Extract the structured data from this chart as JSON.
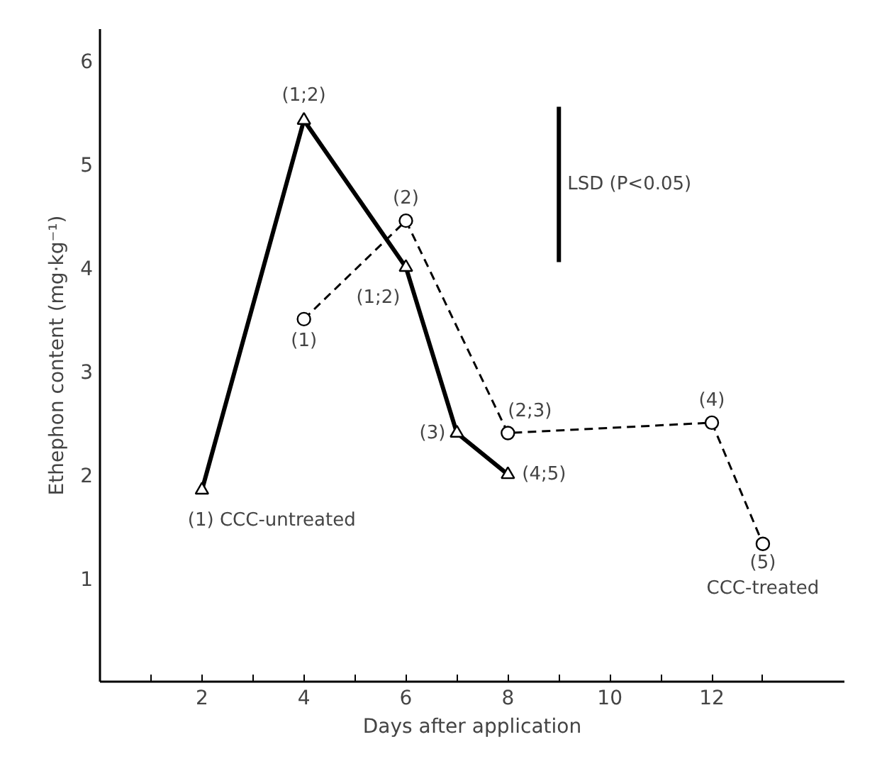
{
  "chart_data": {
    "type": "line",
    "xlabel": "Days after application",
    "ylabel": "Ethephon content (mg·kg⁻¹)",
    "xlim": [
      0,
      14.6
    ],
    "ylim": [
      0,
      6.3
    ],
    "xticks": [
      {
        "value": 1,
        "label": null
      },
      2,
      {
        "value": 3,
        "label": null
      },
      4,
      {
        "value": 5,
        "label": null
      },
      6,
      {
        "value": 7,
        "label": null
      },
      8,
      {
        "value": 9,
        "label": null
      },
      10,
      {
        "value": 11,
        "label": null
      },
      12,
      {
        "value": 13,
        "label": null
      }
    ],
    "yticks": [
      1,
      2,
      3,
      4,
      5,
      6
    ],
    "grid": false,
    "series": [
      {
        "color": "#000000",
        "x": [
          2,
          4,
          6,
          7,
          8
        ],
        "values": [
          1.85,
          5.42,
          4.0,
          2.4,
          2.0
        ],
        "marker": "triangle",
        "line_style": "solid"
      },
      {
        "color": "#000000",
        "x": [
          4,
          6,
          8,
          12,
          13
        ],
        "values": [
          3.5,
          4.45,
          2.4,
          2.5,
          1.33
        ],
        "marker": "circle",
        "line_style": "dashed"
      },
      {
        "color": "#000000",
        "x": [
          9,
          9
        ],
        "values": [
          5.55,
          4.05
        ],
        "marker": "none",
        "line_style": "solid"
      }
    ],
    "annotations": [
      {
        "text": "(1) CCC-untreated",
        "x": 2,
        "y": 1.85
      },
      {
        "text": "(1;2)",
        "x": 4,
        "y": 5.42
      },
      {
        "text": "(1;2)",
        "x": 6,
        "y": 4.0
      },
      {
        "text": "(3)",
        "x": 7,
        "y": 2.4
      },
      {
        "text": "(4;5)",
        "x": 8,
        "y": 2.0
      },
      {
        "text": "(1)",
        "x": 4,
        "y": 3.5
      },
      {
        "text": "(2)",
        "x": 6,
        "y": 4.45
      },
      {
        "text": "(2;3)",
        "x": 8,
        "y": 2.4
      },
      {
        "text": "(4)",
        "x": 12,
        "y": 2.5
      },
      {
        "text": "(5)",
        "x": 13,
        "y": 1.33
      },
      {
        "text": "CCC-treated",
        "x": 13,
        "y": 1.33
      },
      {
        "text": "LSD (P<0.05)",
        "x": 9,
        "y": 4.8
      }
    ]
  }
}
